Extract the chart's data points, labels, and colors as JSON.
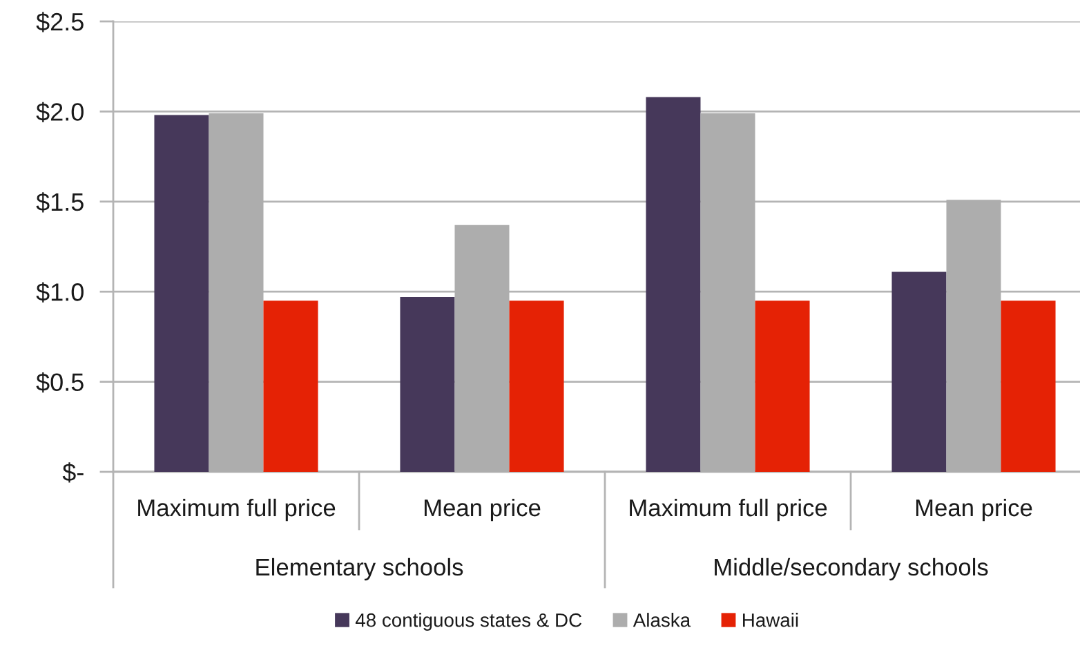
{
  "chart_data": {
    "type": "bar",
    "categories": [
      "Maximum full price",
      "Mean price",
      "Maximum full price",
      "Mean price"
    ],
    "annotations": [
      "Elementary schools",
      "Middle/secondary schools"
    ],
    "series": [
      {
        "name": "48 contiguous states & DC",
        "color": "#46385a",
        "values": [
          1.98,
          0.97,
          2.08,
          1.11
        ]
      },
      {
        "name": "Alaska",
        "color": "#adadad",
        "values": [
          1.99,
          1.37,
          1.99,
          1.51
        ]
      },
      {
        "name": "Hawaii",
        "color": "#e52205",
        "values": [
          0.95,
          0.95,
          0.95,
          0.95
        ]
      }
    ],
    "ylim": [
      0,
      2.5
    ],
    "yticks": [
      {
        "value": 0,
        "label": "$-"
      },
      {
        "value": 0.5,
        "label": "$0.5"
      },
      {
        "value": 1.0,
        "label": "$1.0"
      },
      {
        "value": 1.5,
        "label": "$1.5"
      },
      {
        "value": 2.0,
        "label": "$2.0"
      },
      {
        "value": 2.5,
        "label": "$2.5"
      }
    ],
    "grid": "y",
    "legend": "bottom"
  }
}
